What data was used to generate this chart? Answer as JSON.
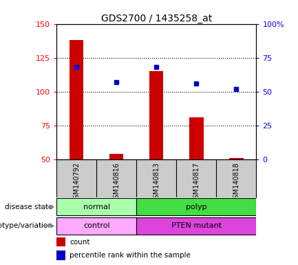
{
  "title": "GDS2700 / 1435258_at",
  "samples": [
    "GSM140792",
    "GSM140816",
    "GSM140813",
    "GSM140817",
    "GSM140818"
  ],
  "counts": [
    138,
    54,
    115,
    81,
    51
  ],
  "percentile_ranks": [
    68,
    57,
    68,
    56,
    52
  ],
  "ylim_left": [
    50,
    150
  ],
  "ylim_right": [
    0,
    100
  ],
  "yticks_left": [
    50,
    75,
    100,
    125,
    150
  ],
  "yticks_right": [
    0,
    25,
    50,
    75,
    100
  ],
  "ytick_labels_right": [
    "0",
    "25",
    "50",
    "75",
    "100%"
  ],
  "bar_color": "#cc0000",
  "dot_color": "#0000cc",
  "bar_bottom": 50,
  "disease_state_colors": {
    "normal": "#aaffaa",
    "polyp": "#44dd44"
  },
  "genotype_colors": {
    "control": "#ffaaff",
    "PTEN mutant": "#dd44dd"
  },
  "label_disease_state": "disease state",
  "label_genotype": "genotype/variation",
  "legend_count": "count",
  "legend_percentile": "percentile rank within the sample",
  "background_color": "#ffffff",
  "plot_bg_color": "#ffffff",
  "tick_area_bg": "#cccccc"
}
